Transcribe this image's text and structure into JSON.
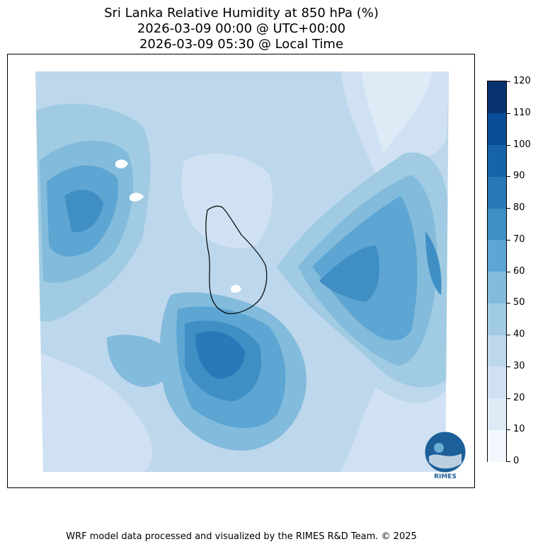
{
  "title": {
    "line1": "Sri Lanka Relative Humidity at 850 hPa (%)",
    "line2": "2026-03-09 00:00 @ UTC+00:00",
    "line3": "2026-03-09 05:30 @ Local Time"
  },
  "colorbar": {
    "levels": [
      "0",
      "10",
      "20",
      "30",
      "40",
      "50",
      "60",
      "70",
      "80",
      "90",
      "100",
      "110",
      "120"
    ],
    "colors": [
      "#f1f7fd",
      "#deebf7",
      "#cfe1f2",
      "#bdd7ec",
      "#a0cbe2",
      "#82bbdb",
      "#5da5d2",
      "#3f8fc5",
      "#2979b9",
      "#1663aa",
      "#084d96",
      "#083370"
    ]
  },
  "logo": {
    "text": "RIMES"
  },
  "footer": "WRF model data processed and visualized by the RIMES R&D Team. © 2025"
}
